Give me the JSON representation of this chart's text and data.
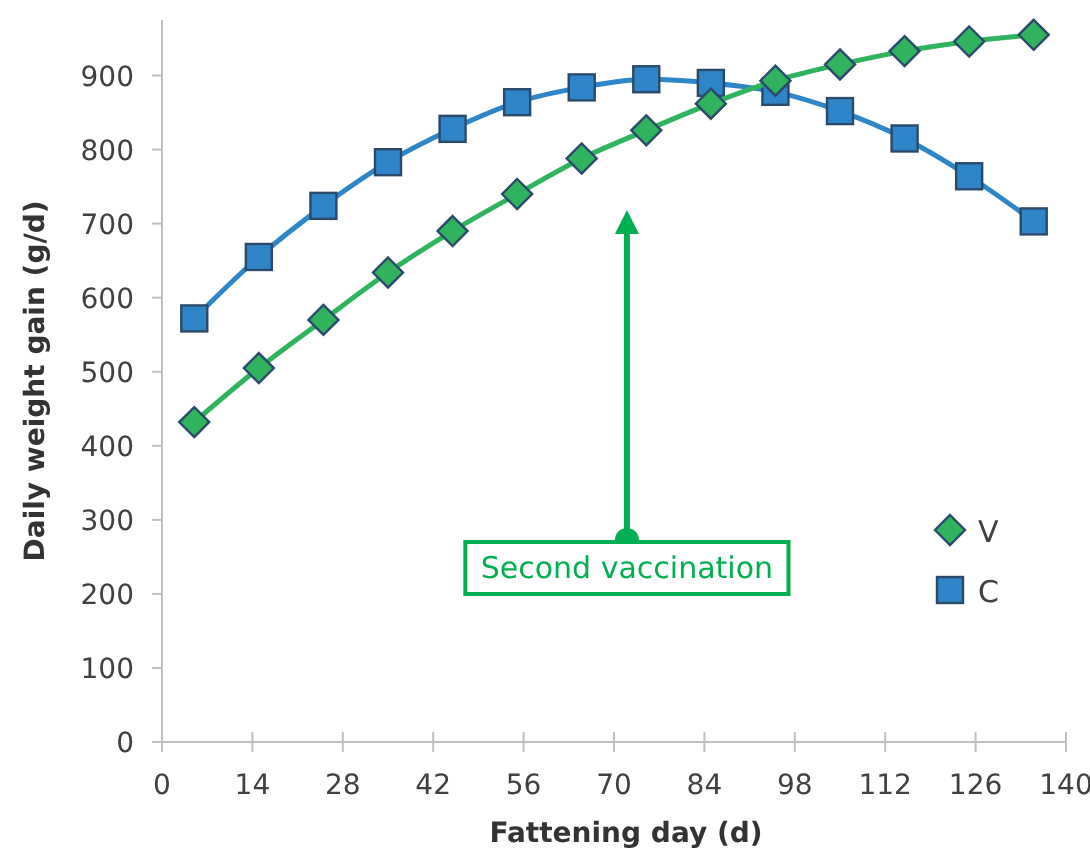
{
  "chart_data": {
    "type": "line",
    "xlabel": "Fattening day (d)",
    "ylabel": "Daily weight gain (g/d)",
    "x": [
      5,
      15,
      25,
      35,
      45,
      55,
      65,
      75,
      85,
      95,
      105,
      115,
      125,
      135
    ],
    "series": [
      {
        "name": "V",
        "color": "#2fb35c",
        "marker": "diamond",
        "values": [
          432,
          505,
          570,
          634,
          690,
          740,
          788,
          826,
          862,
          893,
          915,
          933,
          946,
          955
        ]
      },
      {
        "name": "C",
        "color": "#2e86c8",
        "marker": "square",
        "values": [
          572,
          655,
          724,
          783,
          828,
          864,
          884,
          895,
          890,
          878,
          852,
          815,
          764,
          703
        ]
      }
    ],
    "xlim": [
      0,
      140
    ],
    "xticks": [
      0,
      14,
      28,
      42,
      56,
      70,
      84,
      98,
      112,
      126,
      140
    ],
    "ylim": [
      0,
      975
    ],
    "yticks": [
      0,
      100,
      200,
      300,
      400,
      500,
      600,
      700,
      800,
      900
    ],
    "grid": false,
    "legend": "right",
    "line_style": "solid",
    "annotations": [
      "Second vaccination"
    ]
  }
}
